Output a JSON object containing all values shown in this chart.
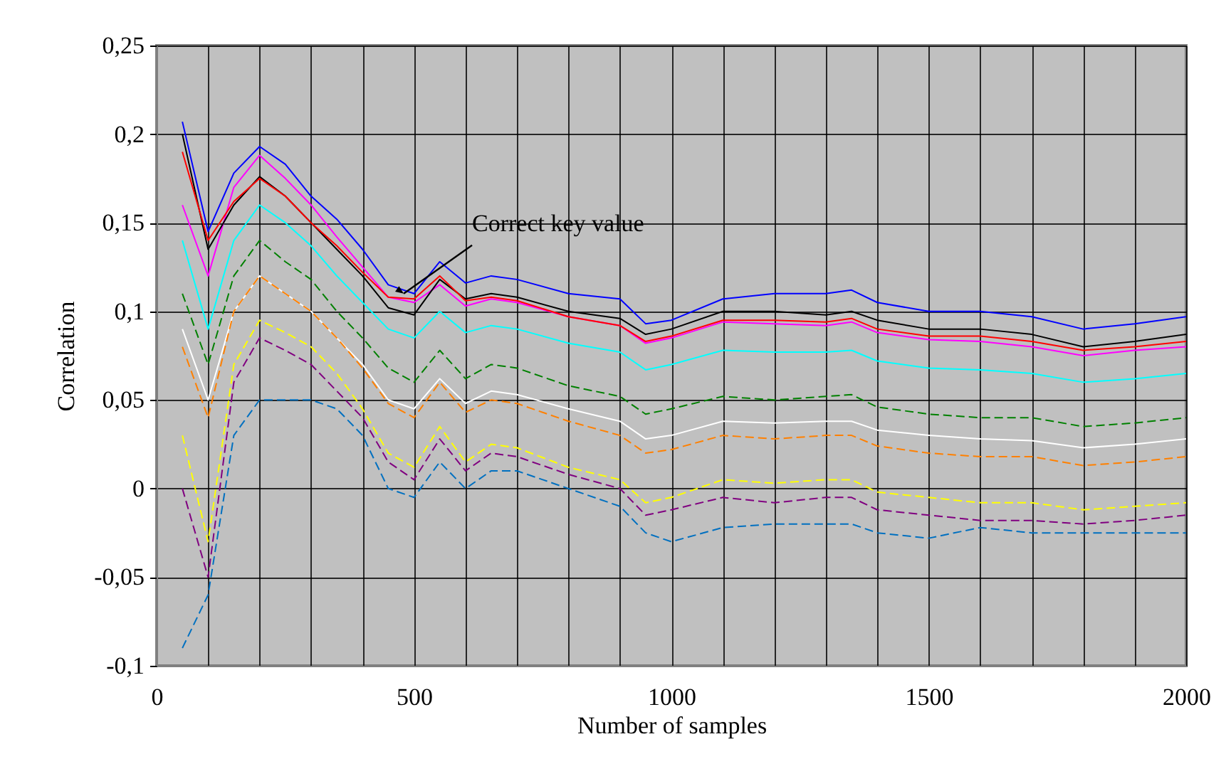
{
  "chart_data": {
    "type": "line",
    "xlabel": "Number of samples",
    "ylabel": "Correlation",
    "x": [
      50,
      100,
      150,
      200,
      250,
      300,
      350,
      400,
      450,
      500,
      550,
      600,
      650,
      700,
      800,
      900,
      950,
      1000,
      1100,
      1200,
      1300,
      1350,
      1400,
      1500,
      1600,
      1700,
      1800,
      1900,
      2000
    ],
    "xlim": [
      0,
      2000
    ],
    "xticks": [
      0,
      {
        "value": 100,
        "label": null
      },
      {
        "value": 200,
        "label": null
      },
      {
        "value": 300,
        "label": null
      },
      {
        "value": 400,
        "label": null
      },
      500,
      {
        "value": 600,
        "label": null
      },
      {
        "value": 700,
        "label": null
      },
      {
        "value": 800,
        "label": null
      },
      {
        "value": 900,
        "label": null
      },
      1000,
      {
        "value": 1100,
        "label": null
      },
      {
        "value": 1200,
        "label": null
      },
      {
        "value": 1300,
        "label": null
      },
      {
        "value": 1400,
        "label": null
      },
      1500,
      {
        "value": 1600,
        "label": null
      },
      {
        "value": 1700,
        "label": null
      },
      {
        "value": 1800,
        "label": null
      },
      {
        "value": 1900,
        "label": null
      },
      2000
    ],
    "ylim": [
      -0.1,
      0.25
    ],
    "yticks": [
      {
        "value": -0.1,
        "label": "-0,1"
      },
      {
        "value": -0.05,
        "label": "-0,05"
      },
      0,
      {
        "value": 0.05,
        "label": "0,05"
      },
      {
        "value": 0.1,
        "label": "0,1"
      },
      {
        "value": 0.15,
        "label": "0,15"
      },
      {
        "value": 0.2,
        "label": "0,2"
      },
      {
        "value": 0.25,
        "label": "0,25"
      }
    ],
    "grid": true,
    "series": [
      {
        "color": "#ffffff",
        "line_style": "solid",
        "values": [
          0.09,
          0.05,
          0.1,
          0.12,
          0.11,
          0.1,
          0.085,
          0.07,
          0.05,
          0.045,
          0.062,
          0.048,
          0.055,
          0.053,
          0.045,
          0.038,
          0.028,
          0.03,
          0.038,
          0.037,
          0.038,
          0.038,
          0.033,
          0.03,
          0.028,
          0.027,
          0.023,
          0.025,
          0.028
        ]
      },
      {
        "color": "#0070c0",
        "line_style": "dashed",
        "values": [
          -0.09,
          -0.06,
          0.03,
          0.05,
          0.05,
          0.05,
          0.045,
          0.03,
          0.0,
          -0.005,
          0.015,
          0.0,
          0.01,
          0.01,
          0.0,
          -0.01,
          -0.025,
          -0.03,
          -0.022,
          -0.02,
          -0.02,
          -0.02,
          -0.025,
          -0.028,
          -0.022,
          -0.025,
          -0.025,
          -0.025,
          -0.025
        ]
      },
      {
        "color": "#800080",
        "line_style": "dashed",
        "values": [
          0.0,
          -0.05,
          0.06,
          0.085,
          0.078,
          0.07,
          0.055,
          0.04,
          0.015,
          0.005,
          0.028,
          0.01,
          0.02,
          0.018,
          0.008,
          0.0,
          -0.015,
          -0.012,
          -0.005,
          -0.008,
          -0.005,
          -0.005,
          -0.012,
          -0.015,
          -0.018,
          -0.018,
          -0.02,
          -0.018,
          -0.015
        ]
      },
      {
        "color": "#ffff00",
        "line_style": "dashed",
        "values": [
          0.03,
          -0.03,
          0.07,
          0.095,
          0.088,
          0.08,
          0.065,
          0.045,
          0.02,
          0.012,
          0.035,
          0.015,
          0.025,
          0.023,
          0.012,
          0.005,
          -0.008,
          -0.005,
          0.005,
          0.003,
          0.005,
          0.005,
          -0.002,
          -0.005,
          -0.008,
          -0.008,
          -0.012,
          -0.01,
          -0.008
        ]
      },
      {
        "color": "#ff8000",
        "line_style": "dashed",
        "values": [
          0.08,
          0.04,
          0.1,
          0.12,
          0.11,
          0.1,
          0.085,
          0.068,
          0.048,
          0.04,
          0.06,
          0.043,
          0.05,
          0.048,
          0.038,
          0.03,
          0.02,
          0.022,
          0.03,
          0.028,
          0.03,
          0.03,
          0.024,
          0.02,
          0.018,
          0.018,
          0.013,
          0.015,
          0.018
        ]
      },
      {
        "color": "#008000",
        "line_style": "dashed",
        "values": [
          0.11,
          0.07,
          0.12,
          0.14,
          0.128,
          0.118,
          0.1,
          0.085,
          0.068,
          0.06,
          0.078,
          0.062,
          0.07,
          0.068,
          0.058,
          0.052,
          0.042,
          0.045,
          0.052,
          0.05,
          0.052,
          0.053,
          0.046,
          0.042,
          0.04,
          0.04,
          0.035,
          0.037,
          0.04
        ]
      },
      {
        "color": "#00ffff",
        "line_style": "solid",
        "values": [
          0.14,
          0.09,
          0.14,
          0.16,
          0.15,
          0.137,
          0.12,
          0.105,
          0.09,
          0.085,
          0.1,
          0.088,
          0.092,
          0.09,
          0.082,
          0.077,
          0.067,
          0.07,
          0.078,
          0.077,
          0.077,
          0.078,
          0.072,
          0.068,
          0.067,
          0.065,
          0.06,
          0.062,
          0.065
        ]
      },
      {
        "color": "#ff00ff",
        "line_style": "solid",
        "values": [
          0.16,
          0.12,
          0.17,
          0.188,
          0.175,
          0.16,
          0.142,
          0.125,
          0.108,
          0.105,
          0.115,
          0.103,
          0.107,
          0.105,
          0.097,
          0.092,
          0.082,
          0.085,
          0.094,
          0.093,
          0.092,
          0.094,
          0.088,
          0.084,
          0.083,
          0.08,
          0.075,
          0.078,
          0.08
        ]
      },
      {
        "color": "#000000",
        "line_style": "solid",
        "values": [
          0.2,
          0.135,
          0.16,
          0.176,
          0.165,
          0.15,
          0.135,
          0.12,
          0.102,
          0.098,
          0.118,
          0.107,
          0.11,
          0.108,
          0.1,
          0.096,
          0.087,
          0.09,
          0.1,
          0.1,
          0.098,
          0.1,
          0.095,
          0.09,
          0.09,
          0.087,
          0.08,
          0.083,
          0.087
        ]
      },
      {
        "color": "#ff0000",
        "line_style": "solid",
        "values": [
          0.19,
          0.14,
          0.162,
          0.175,
          0.165,
          0.15,
          0.137,
          0.122,
          0.108,
          0.107,
          0.12,
          0.106,
          0.108,
          0.106,
          0.097,
          0.092,
          0.083,
          0.086,
          0.095,
          0.095,
          0.094,
          0.096,
          0.09,
          0.086,
          0.086,
          0.083,
          0.078,
          0.08,
          0.083
        ]
      },
      {
        "color": "#0000ff",
        "line_style": "solid",
        "values": [
          0.207,
          0.145,
          0.178,
          0.193,
          0.183,
          0.165,
          0.152,
          0.135,
          0.115,
          0.11,
          0.128,
          0.116,
          0.12,
          0.118,
          0.11,
          0.107,
          0.093,
          0.095,
          0.107,
          0.11,
          0.11,
          0.112,
          0.105,
          0.1,
          0.1,
          0.097,
          0.09,
          0.093,
          0.097
        ]
      }
    ],
    "annotations": [
      {
        "text": "Correct key value",
        "x": 480,
        "y": 0.11
      }
    ]
  }
}
